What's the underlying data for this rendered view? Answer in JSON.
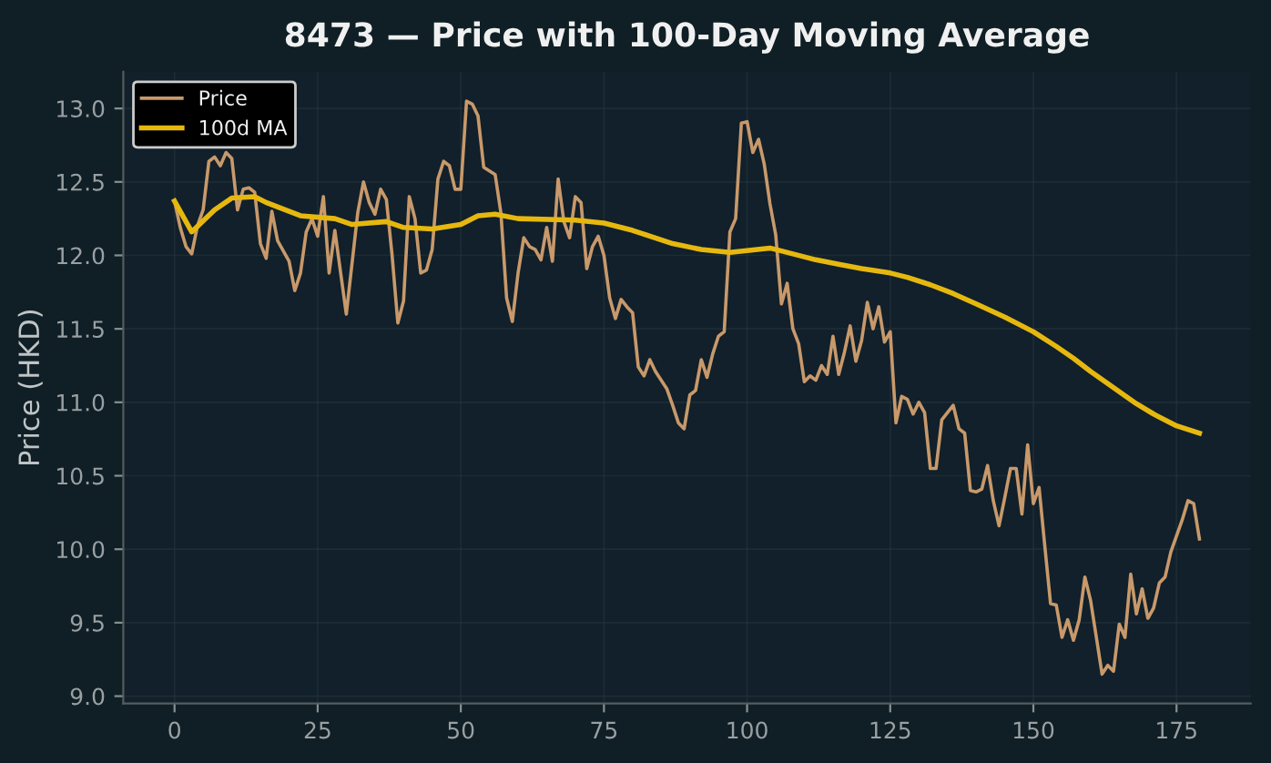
{
  "chart_data": {
    "type": "line",
    "title": "8473 — Price with 100-Day Moving Average",
    "ylabel": "Price (HKD)",
    "xlim": [
      -8.95,
      187.95
    ],
    "ylim": [
      8.95,
      13.25
    ],
    "xticks": [
      0,
      25,
      50,
      75,
      100,
      125,
      150,
      175
    ],
    "yticks": [
      {
        "value": 9.0,
        "label": "9.0"
      },
      {
        "value": 9.5,
        "label": "9.5"
      },
      {
        "value": 10.0,
        "label": "10.0"
      },
      {
        "value": 10.5,
        "label": "10.5"
      },
      {
        "value": 11.0,
        "label": "11.0"
      },
      {
        "value": 11.5,
        "label": "11.5"
      },
      {
        "value": 12.0,
        "label": "12.0"
      },
      {
        "value": 12.5,
        "label": "12.5"
      },
      {
        "value": 13.0,
        "label": "13.0"
      }
    ],
    "grid": true,
    "legend": "top left",
    "marker": "none",
    "line_style": "solid",
    "series": [
      {
        "name": "Price",
        "color": "#c8996b",
        "x": [
          0,
          1,
          2,
          3,
          4,
          5,
          6,
          7,
          8,
          9,
          10,
          11,
          12,
          13,
          14,
          15,
          16,
          17,
          18,
          20,
          21,
          22,
          23,
          24,
          25,
          26,
          27,
          28,
          30,
          32,
          33,
          34,
          35,
          36,
          37,
          38,
          39,
          40,
          41,
          42,
          43,
          44,
          45,
          46,
          47,
          48,
          49,
          50,
          51,
          52,
          53,
          54,
          56,
          57,
          58,
          59,
          60,
          61,
          62,
          63,
          64,
          65,
          66,
          67,
          68,
          69,
          70,
          71,
          72,
          73,
          74,
          75,
          76,
          77,
          78,
          79,
          80,
          81,
          82,
          83,
          84,
          86,
          87,
          88,
          89,
          90,
          91,
          92,
          93,
          94,
          95,
          96,
          97,
          98,
          99,
          100,
          101,
          102,
          103,
          104,
          105,
          106,
          107,
          108,
          109,
          110,
          111,
          112,
          113,
          114,
          115,
          116,
          117,
          118,
          119,
          120,
          121,
          122,
          123,
          124,
          125,
          126,
          127,
          128,
          129,
          130,
          131,
          132,
          133,
          134,
          135,
          136,
          137,
          138,
          139,
          140,
          141,
          142,
          143,
          144,
          145,
          146,
          147,
          148,
          149,
          150,
          151,
          152,
          153,
          154,
          155,
          156,
          157,
          158,
          159,
          160,
          161,
          162,
          163,
          164,
          165,
          166,
          167,
          168,
          169,
          170,
          171,
          172,
          173,
          174,
          175,
          176,
          177,
          178,
          179
        ],
        "values": [
          12.37,
          12.19,
          12.06,
          12.01,
          12.2,
          12.31,
          12.64,
          12.67,
          12.61,
          12.7,
          12.66,
          12.31,
          12.45,
          12.46,
          12.43,
          12.08,
          11.98,
          12.3,
          12.1,
          11.96,
          11.76,
          11.88,
          12.16,
          12.25,
          12.13,
          12.4,
          11.88,
          12.17,
          11.6,
          12.29,
          12.5,
          12.36,
          12.28,
          12.45,
          12.38,
          12.0,
          11.54,
          11.69,
          12.4,
          12.25,
          11.88,
          11.9,
          12.04,
          12.52,
          12.64,
          12.61,
          12.45,
          12.45,
          13.05,
          13.03,
          12.95,
          12.6,
          12.55,
          12.29,
          11.71,
          11.55,
          11.88,
          12.12,
          12.06,
          12.04,
          11.97,
          12.19,
          11.96,
          12.52,
          12.23,
          12.12,
          12.4,
          12.36,
          11.91,
          12.06,
          12.13,
          12.0,
          11.71,
          11.57,
          11.7,
          11.65,
          11.61,
          11.24,
          11.18,
          11.29,
          11.21,
          11.09,
          10.98,
          10.86,
          10.82,
          11.05,
          11.08,
          11.29,
          11.17,
          11.33,
          11.45,
          11.48,
          12.16,
          12.25,
          12.9,
          12.91,
          12.7,
          12.79,
          12.62,
          12.35,
          12.14,
          11.67,
          11.81,
          11.5,
          11.4,
          11.14,
          11.18,
          11.15,
          11.25,
          11.19,
          11.45,
          11.19,
          11.34,
          11.52,
          11.28,
          11.42,
          11.68,
          11.5,
          11.65,
          11.41,
          11.48,
          10.86,
          11.04,
          11.02,
          10.92,
          11.0,
          10.93,
          10.55,
          10.55,
          10.88,
          10.93,
          10.98,
          10.82,
          10.79,
          10.4,
          10.39,
          10.41,
          10.57,
          10.33,
          10.16,
          10.35,
          10.55,
          10.55,
          10.24,
          10.71,
          10.31,
          10.42,
          10.02,
          9.63,
          9.62,
          9.4,
          9.52,
          9.38,
          9.52,
          9.81,
          9.65,
          9.4,
          9.15,
          9.21,
          9.17,
          9.49,
          9.4,
          9.83,
          9.56,
          9.73,
          9.53,
          9.6,
          9.77,
          9.81,
          9.98,
          10.09,
          10.2,
          10.33,
          10.31,
          10.07
        ]
      },
      {
        "name": "100d MA",
        "color": "#e6b80f",
        "x": [
          0,
          3,
          7,
          10,
          14,
          16,
          22,
          28,
          31,
          37,
          40,
          45,
          50,
          53,
          56,
          60,
          70,
          75,
          80,
          87,
          92,
          97,
          104,
          108,
          112,
          116,
          120,
          125,
          128,
          132,
          136,
          140,
          145,
          150,
          154,
          157,
          160,
          164,
          168,
          171,
          175,
          179
        ],
        "values": [
          12.37,
          12.16,
          12.31,
          12.39,
          12.4,
          12.36,
          12.27,
          12.25,
          12.21,
          12.23,
          12.19,
          12.18,
          12.21,
          12.27,
          12.28,
          12.25,
          12.24,
          12.22,
          12.17,
          12.08,
          12.04,
          12.02,
          12.05,
          12.01,
          11.97,
          11.94,
          11.91,
          11.88,
          11.85,
          11.8,
          11.74,
          11.67,
          11.58,
          11.48,
          11.38,
          11.3,
          11.21,
          11.1,
          10.99,
          10.92,
          10.84,
          10.79
        ]
      }
    ]
  }
}
